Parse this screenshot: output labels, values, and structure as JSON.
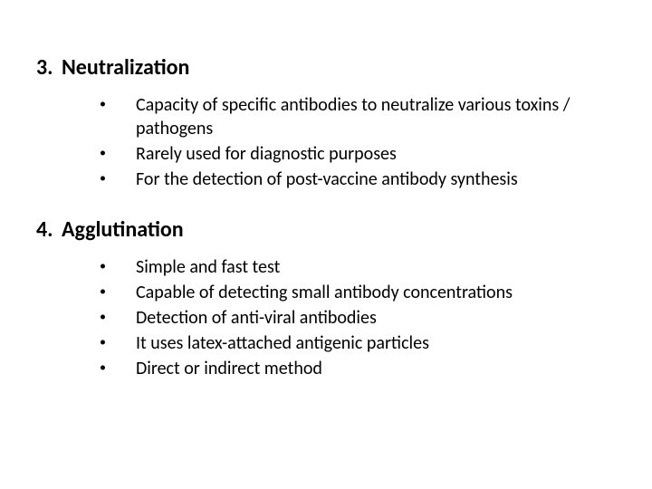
{
  "background_color": "#ffffff",
  "text_color": "#000000",
  "heading_fontsize": 24,
  "body_fontsize": 20,
  "font_family": "Calibri, 'Segoe UI', Arial, sans-serif",
  "sections": [
    {
      "number": "3.",
      "title": "Neutralization",
      "bullets": [
        "Capacity of specific antibodies to neutralize various toxins / pathogens",
        "Rarely used for diagnostic purposes",
        "For the detection of post-vaccine antibody synthesis"
      ]
    },
    {
      "number": "4.",
      "title": "Agglutination",
      "bullets": [
        "Simple and fast test",
        "Capable of detecting small antibody concentrations",
        "Detection of anti-viral antibodies",
        "It uses latex-attached antigenic particles",
        "Direct or indirect method"
      ]
    }
  ]
}
